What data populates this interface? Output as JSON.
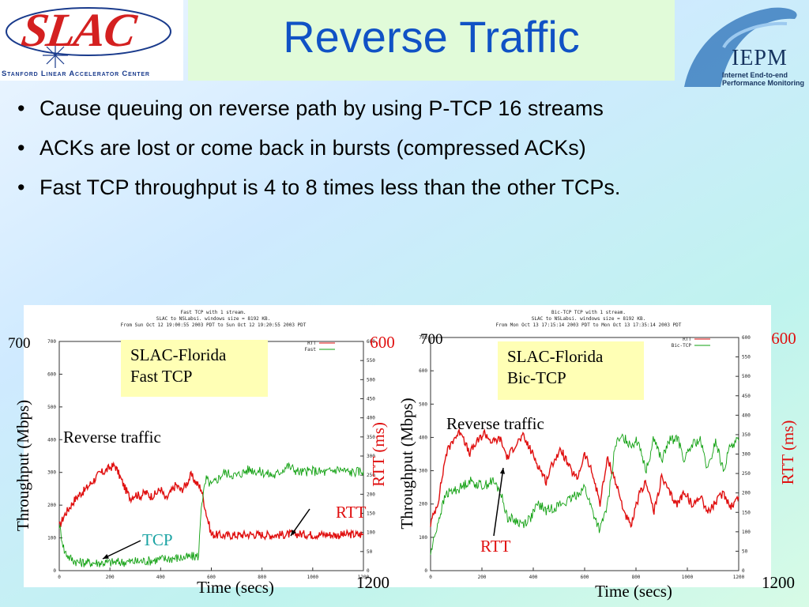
{
  "logos": {
    "slac_word": "SLAC",
    "slac_subtitle": "Stanford Linear Accelerator Center",
    "iepm_word": "IEPM",
    "iepm_line1": "Internet End-to-end",
    "iepm_line2": "Performance Monitoring"
  },
  "slide": {
    "title": "Reverse Traffic",
    "bullets": [
      "Cause queuing on reverse path by using P-TCP 16 streams",
      "ACKs are lost or come back in bursts (compressed ACKs)",
      "Fast TCP throughput is 4 to 8 times less than the other TCPs."
    ]
  },
  "colors": {
    "rtt": "#e01010",
    "tcp": "#10a010",
    "label_box": "#ffffb5",
    "title_color": "#1052c5",
    "tcp_label": "#1aa3a3"
  },
  "chart_data": [
    {
      "type": "line",
      "header": [
        "Fast TCP with 1 stream.",
        "SLAC to NSLabsi. windows size = 8192 KB.",
        "From Sun Oct 12 19:00:55 2003 PDT to Sun Oct 12 19:20:55 2003 PDT"
      ],
      "callout_box": [
        "SLAC-Florida",
        "Fast TCP"
      ],
      "annotations": {
        "reverse": "Reverse traffic",
        "rtt": "RTT",
        "tcp": "TCP"
      },
      "xlabel": "Time (secs)",
      "ylabel_left": "Throughput (Mbps)",
      "ylabel_right": "RTT (ms)",
      "left_top": "700",
      "right_top": "600",
      "x_end": "1200",
      "xlim": [
        0,
        1200
      ],
      "ylim_left": [
        0,
        700
      ],
      "ylim_right": [
        0,
        600
      ],
      "x_ticks": [
        "0",
        "200",
        "400",
        "600",
        "800",
        "1000",
        "1200"
      ],
      "y_left_ticks": [
        "0",
        "100",
        "200",
        "300",
        "400",
        "500",
        "600",
        "700"
      ],
      "y_right_ticks": [
        "0",
        "50",
        "100",
        "150",
        "200",
        "250",
        "300",
        "350",
        "400",
        "450",
        "500",
        "550",
        "600"
      ],
      "legend": [
        "RTT",
        "Fast"
      ],
      "series": [
        {
          "name": "RTT",
          "axis": "right",
          "x": [
            0,
            20,
            40,
            60,
            80,
            100,
            120,
            140,
            160,
            180,
            200,
            220,
            240,
            260,
            280,
            300,
            320,
            340,
            360,
            380,
            400,
            420,
            440,
            460,
            480,
            500,
            520,
            540,
            560,
            580,
            600,
            650,
            700,
            750,
            800,
            850,
            900,
            950,
            1000,
            1050,
            1100,
            1150,
            1200
          ],
          "y": [
            115,
            145,
            165,
            185,
            200,
            210,
            225,
            240,
            255,
            260,
            270,
            275,
            245,
            215,
            190,
            200,
            195,
            205,
            195,
            200,
            215,
            185,
            205,
            225,
            210,
            225,
            250,
            230,
            215,
            150,
            95,
            92,
            93,
            95,
            94,
            93,
            95,
            96,
            94,
            95,
            93,
            95,
            94
          ]
        },
        {
          "name": "Fast",
          "axis": "left",
          "x": [
            0,
            20,
            40,
            60,
            80,
            100,
            150,
            200,
            250,
            300,
            350,
            400,
            450,
            500,
            550,
            560,
            580,
            600,
            650,
            700,
            750,
            800,
            850,
            900,
            950,
            1000,
            1050,
            1100,
            1150,
            1200
          ],
          "y": [
            140,
            60,
            40,
            30,
            25,
            25,
            24,
            25,
            26,
            28,
            30,
            35,
            38,
            40,
            45,
            200,
            280,
            260,
            300,
            290,
            310,
            300,
            290,
            320,
            300,
            305,
            300,
            310,
            300,
            305
          ]
        }
      ]
    },
    {
      "type": "line",
      "header": [
        "Bic-TCP TCP with 1 stream.",
        "SLAC to NSLabsi. windows size = 8192 KB.",
        "From Mon Oct 13 17:15:14 2003 PDT to Mon Oct 13 17:35:14 2003 PDT"
      ],
      "callout_box": [
        "SLAC-Florida",
        "Bic-TCP"
      ],
      "annotations": {
        "reverse": "Reverse traffic",
        "rtt": "RTT"
      },
      "xlabel": "Time (secs)",
      "ylabel_left": "Throughput (Mbps)",
      "ylabel_right": "RTT (ms)",
      "left_top": "700",
      "right_top": "600",
      "x_end": "1200",
      "xlim": [
        0,
        1200
      ],
      "ylim_left": [
        0,
        700
      ],
      "ylim_right": [
        0,
        600
      ],
      "x_ticks": [
        "0",
        "200",
        "400",
        "600",
        "800",
        "1000",
        "1200"
      ],
      "y_left_ticks": [
        "0",
        "100",
        "200",
        "300",
        "400",
        "500",
        "600",
        "700"
      ],
      "y_right_ticks": [
        "0",
        "50",
        "100",
        "150",
        "200",
        "250",
        "300",
        "350",
        "400",
        "450",
        "500",
        "550",
        "600"
      ],
      "legend": [
        "RTT",
        "Bic-TCP"
      ],
      "series": [
        {
          "name": "RTT",
          "axis": "right",
          "x": [
            0,
            30,
            60,
            90,
            120,
            150,
            180,
            210,
            240,
            270,
            300,
            330,
            360,
            390,
            420,
            450,
            480,
            510,
            540,
            570,
            600,
            630,
            660,
            690,
            720,
            750,
            780,
            810,
            840,
            870,
            900,
            930,
            960,
            990,
            1020,
            1050,
            1080,
            1110,
            1140,
            1170,
            1200
          ],
          "y": [
            120,
            180,
            300,
            340,
            360,
            300,
            330,
            355,
            330,
            340,
            290,
            325,
            345,
            310,
            270,
            230,
            285,
            310,
            265,
            235,
            300,
            250,
            175,
            290,
            230,
            160,
            110,
            190,
            230,
            150,
            240,
            200,
            170,
            205,
            165,
            195,
            150,
            175,
            200,
            165,
            190
          ]
        },
        {
          "name": "Bic-TCP",
          "axis": "left",
          "x": [
            0,
            30,
            60,
            90,
            120,
            150,
            180,
            210,
            240,
            270,
            300,
            330,
            360,
            390,
            420,
            450,
            480,
            510,
            540,
            570,
            600,
            630,
            660,
            690,
            720,
            750,
            780,
            810,
            840,
            870,
            900,
            930,
            960,
            990,
            1020,
            1050,
            1080,
            1110,
            1140,
            1170,
            1200
          ],
          "y": [
            50,
            150,
            230,
            240,
            250,
            270,
            260,
            255,
            270,
            240,
            160,
            150,
            140,
            160,
            200,
            180,
            190,
            200,
            210,
            230,
            250,
            180,
            120,
            200,
            380,
            400,
            380,
            390,
            300,
            400,
            330,
            390,
            400,
            330,
            380,
            390,
            300,
            390,
            300,
            380,
            390
          ]
        }
      ]
    }
  ]
}
